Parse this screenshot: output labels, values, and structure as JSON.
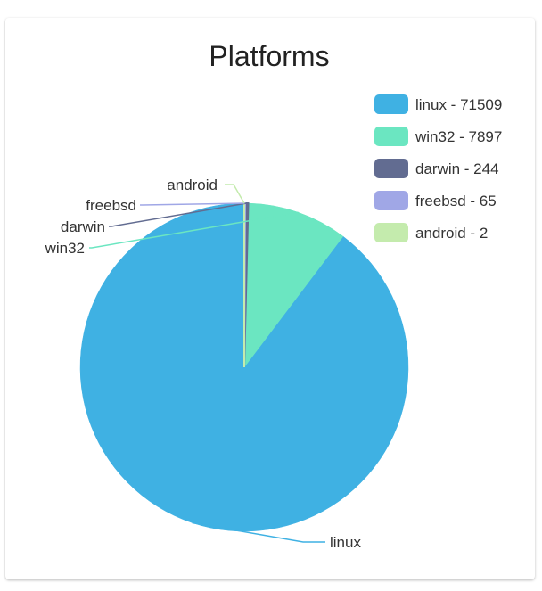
{
  "chart_data": {
    "type": "pie",
    "title": "Platforms",
    "legend_position": "top-right",
    "slices": [
      {
        "name": "linux",
        "value": 71509,
        "color": "#3FB1E3",
        "legend": "linux - 71509"
      },
      {
        "name": "win32",
        "value": 7897,
        "color": "#6BE6C1",
        "legend": "win32 - 7897"
      },
      {
        "name": "darwin",
        "value": 244,
        "color": "#626C91",
        "legend": "darwin - 244"
      },
      {
        "name": "freebsd",
        "value": 65,
        "color": "#A0A7E6",
        "legend": "freebsd - 65"
      },
      {
        "name": "android",
        "value": 2,
        "color": "#C4EBAD",
        "legend": "android - 2"
      }
    ]
  }
}
